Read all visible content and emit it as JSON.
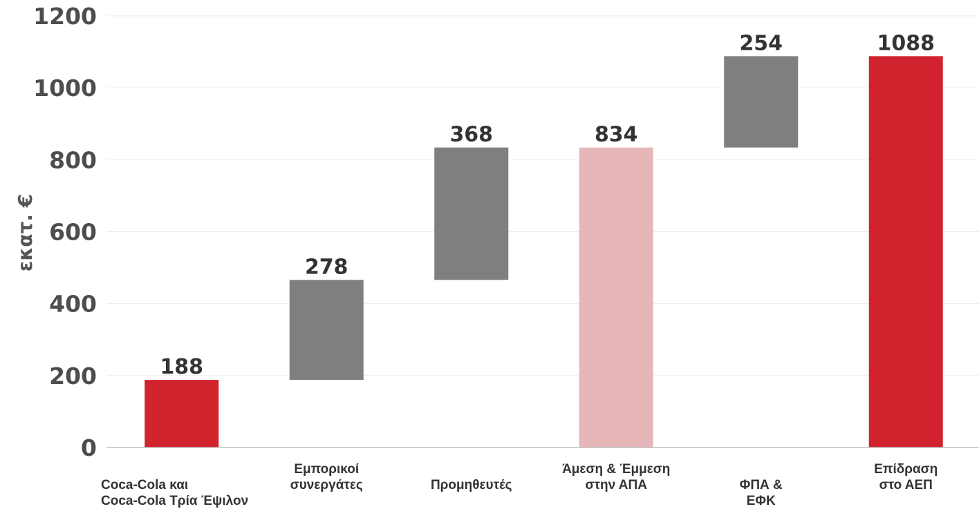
{
  "chart_data": {
    "type": "bar",
    "ylabel": "εκατ. €",
    "ylim": [
      0,
      1200
    ],
    "yticks": [
      "0",
      "200",
      "400",
      "600",
      "800",
      "1000",
      "1200"
    ],
    "grid": true,
    "bars": [
      {
        "labels": [
          "",
          "Coca-Cola και",
          "Coca-Cola Τρία Έψιλον"
        ],
        "base": 0,
        "value": 188,
        "total": 188,
        "label": "188",
        "color": "#d0232e"
      },
      {
        "labels": [
          "Εμπορικοί",
          "συνεργάτες"
        ],
        "base": 188,
        "value": 278,
        "total": 466,
        "label": "278",
        "color": "#7f7f7f"
      },
      {
        "labels": [
          "",
          "Προμηθευτές"
        ],
        "base": 466,
        "value": 368,
        "total": 834,
        "label": "368",
        "color": "#7f7f7f"
      },
      {
        "labels": [
          "Άμεση & Έμμεση",
          "στην ΑΠΑ"
        ],
        "base": 0,
        "value": 834,
        "total": 834,
        "label": "834",
        "color": "#e7b6b8"
      },
      {
        "labels": [
          "",
          "ΦΠΑ &",
          "ΕΦΚ"
        ],
        "base": 834,
        "value": 254,
        "total": 1088,
        "label": "254",
        "color": "#7f7f7f"
      },
      {
        "labels": [
          "Επίδραση",
          "στο ΑΕΠ"
        ],
        "base": 0,
        "value": 1088,
        "total": 1088,
        "label": "1088",
        "color": "#d0232e"
      }
    ]
  }
}
